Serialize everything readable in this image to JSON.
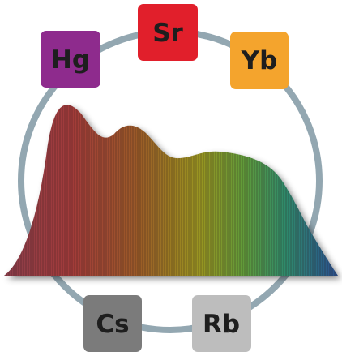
{
  "nodes": [
    {
      "label": "Hg"
    },
    {
      "label": "Sr"
    },
    {
      "label": "Yb"
    },
    {
      "label": "Cs"
    },
    {
      "label": "Rb"
    }
  ]
}
